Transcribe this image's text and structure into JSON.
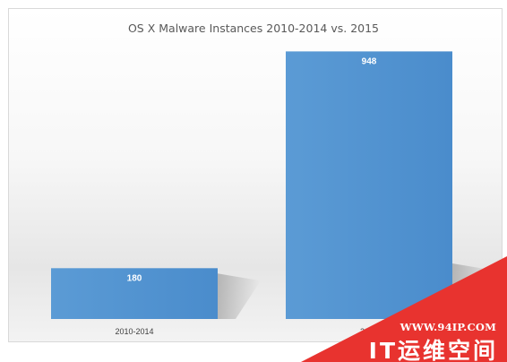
{
  "chart_data": {
    "type": "bar",
    "title": "OS X Malware Instances 2010-2014 vs. 2015",
    "categories": [
      "2010-2014",
      "2015"
    ],
    "values": [
      180,
      948
    ],
    "ylim": [
      0,
      1000
    ],
    "grid": false,
    "legend": "none",
    "xlabel": "",
    "ylabel": "",
    "bar_color": "#5b9bd5"
  },
  "watermark": {
    "url": "WWW.94IP.COM",
    "name": "IT运维空间",
    "color": "#e8332f"
  }
}
